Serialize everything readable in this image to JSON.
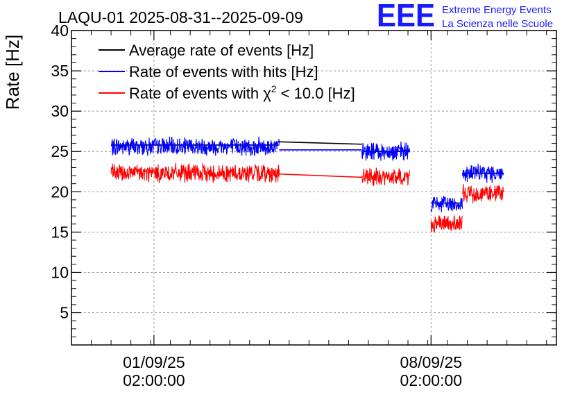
{
  "logo": {
    "text": "EEE",
    "line1": "Extreme Energy Events",
    "line2": "La Scienza nelle Scuole",
    "color": "#1a1aff"
  },
  "chart_data": {
    "type": "line",
    "title": "LAQU-01 2025-08-31--2025-09-09",
    "ylabel": "Rate [Hz]",
    "xlabel": "",
    "ylim": [
      1,
      40
    ],
    "yticks": [
      5,
      10,
      15,
      20,
      25,
      30,
      35,
      40
    ],
    "xlim": [
      "2025-08-30T00:00:00",
      "2025-09-11T06:00:00"
    ],
    "xticks": [
      {
        "label_date": "01/09/25",
        "label_time": "02:00:00",
        "x": "2025-09-01T02:00:00"
      },
      {
        "label_date": "08/09/25",
        "label_time": "02:00:00",
        "x": "2025-09-08T02:00:00"
      }
    ],
    "grid": true,
    "legend_position": "top-left",
    "legend": [
      {
        "prefix": "Average rate of events [Hz]",
        "sup": "",
        "suffix": "",
        "color": "#000000"
      },
      {
        "prefix": "Rate of events with hits [Hz]",
        "sup": "",
        "suffix": "",
        "color": "#0000ff"
      },
      {
        "prefix": "Rate of events with χ",
        "sup": "2",
        "suffix": " < 10.0 [Hz]",
        "color": "#ff0000"
      }
    ],
    "series": [
      {
        "name": "Average rate of events [Hz]",
        "color": "#000000",
        "segments": [
          {
            "x": [
              "2025-08-31T00:00:00",
              "2025-09-04T06:00:00"
            ],
            "y": [
              25.8,
              25.8
            ]
          },
          {
            "x": [
              "2025-09-04T06:00:00",
              "2025-09-06T08:00:00"
            ],
            "y": [
              26.2,
              25.9
            ]
          },
          {
            "x": [
              "2025-09-06T08:00:00",
              "2025-09-07T13:00:00"
            ],
            "y": [
              25.0,
              25.0
            ]
          },
          {
            "x": [
              "2025-09-08T02:00:00",
              "2025-09-08T21:00:00"
            ],
            "y": [
              18.6,
              18.6
            ]
          },
          {
            "x": [
              "2025-09-08T21:00:00",
              "2025-09-09T22:00:00"
            ],
            "y": [
              22.3,
              22.3
            ]
          }
        ]
      },
      {
        "name": "Rate of events with hits [Hz]",
        "color": "#0000ff",
        "segments": [
          {
            "x": [
              "2025-08-31T00:00:00",
              "2025-09-04T06:00:00"
            ],
            "y": [
              25.6,
              25.6
            ],
            "noise": 1.3
          },
          {
            "x": [
              "2025-09-04T06:00:00",
              "2025-09-06T08:00:00"
            ],
            "y": [
              25.2,
              25.2
            ],
            "noise": 0
          },
          {
            "x": [
              "2025-09-06T08:00:00",
              "2025-09-07T13:00:00"
            ],
            "y": [
              25.0,
              25.0
            ],
            "noise": 1.3
          },
          {
            "x": [
              "2025-09-08T02:00:00",
              "2025-09-08T21:00:00"
            ],
            "y": [
              18.5,
              18.5
            ],
            "noise": 1.2
          },
          {
            "x": [
              "2025-09-08T21:00:00",
              "2025-09-09T22:00:00"
            ],
            "y": [
              22.3,
              22.3
            ],
            "noise": 1.3
          }
        ]
      },
      {
        "name": "Rate of events with χ2 < 10.0 [Hz]",
        "color": "#ff0000",
        "segments": [
          {
            "x": [
              "2025-08-31T00:00:00",
              "2025-09-04T06:00:00"
            ],
            "y": [
              22.3,
              22.3
            ],
            "noise": 1.3
          },
          {
            "x": [
              "2025-09-04T06:00:00",
              "2025-09-06T08:00:00"
            ],
            "y": [
              22.2,
              21.8
            ],
            "noise": 0
          },
          {
            "x": [
              "2025-09-06T08:00:00",
              "2025-09-07T13:00:00"
            ],
            "y": [
              21.8,
              21.8
            ],
            "noise": 1.3
          },
          {
            "x": [
              "2025-09-08T02:00:00",
              "2025-09-08T21:00:00"
            ],
            "y": [
              16.0,
              16.0
            ],
            "noise": 1.2
          },
          {
            "x": [
              "2025-09-08T21:00:00",
              "2025-09-09T22:00:00"
            ],
            "y": [
              19.8,
              19.8
            ],
            "noise": 1.3
          }
        ]
      }
    ]
  }
}
